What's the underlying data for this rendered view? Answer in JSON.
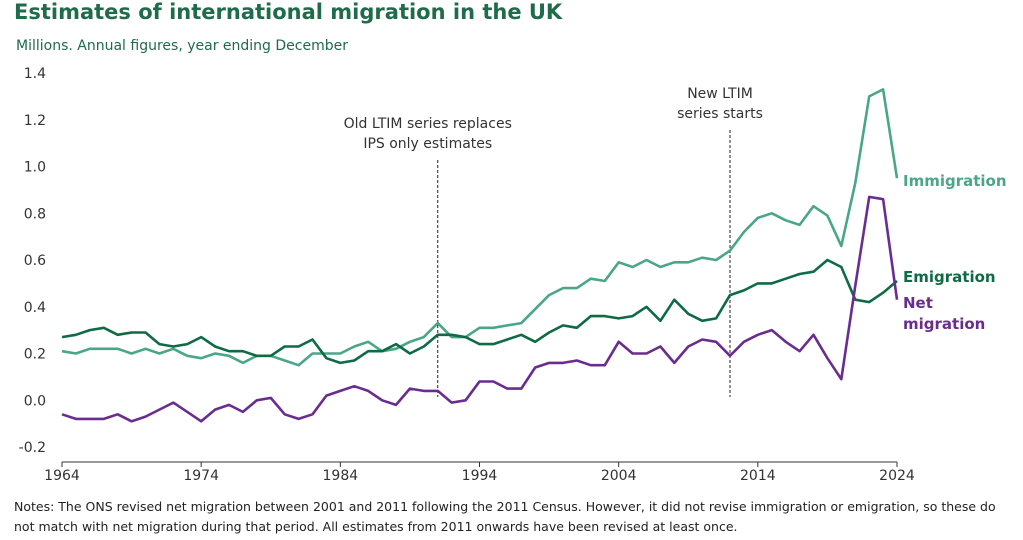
{
  "title": "Estimates of international migration in the UK",
  "subtitle": "Millions. Annual figures, year ending December",
  "notes": "Notes: The ONS revised net migration between 2001 and 2011 following the 2011 Census. However, it did not revise immigration or emigration, so these do not match with net migration during that period. All estimates from 2011 onwards have been revised at least once.",
  "chart_data": {
    "type": "line",
    "title": "Estimates of international migration in the UK",
    "subtitle": "Millions. Annual figures, year ending December",
    "xlim": [
      1964,
      2024
    ],
    "ylim": [
      -0.2,
      1.4
    ],
    "x_ticks": [
      "1964",
      "1974",
      "1984",
      "1994",
      "2004",
      "2014",
      "2024"
    ],
    "y_ticks": [
      "1.4",
      "1.2",
      "1.0",
      "0.8",
      "0.6",
      "0.4",
      "0.2",
      "0.0",
      "-0.2"
    ],
    "grid": false,
    "x": [
      1964,
      1965,
      1966,
      1967,
      1968,
      1969,
      1970,
      1971,
      1972,
      1973,
      1974,
      1975,
      1976,
      1977,
      1978,
      1979,
      1980,
      1981,
      1982,
      1983,
      1984,
      1985,
      1986,
      1987,
      1988,
      1989,
      1990,
      1991,
      1992,
      1993,
      1994,
      1995,
      1996,
      1997,
      1998,
      1999,
      2000,
      2001,
      2002,
      2003,
      2004,
      2005,
      2006,
      2007,
      2008,
      2009,
      2010,
      2011,
      2012,
      2013,
      2014,
      2015,
      2016,
      2017,
      2018,
      2019,
      2020,
      2021,
      2022,
      2023,
      2024
    ],
    "series": [
      {
        "name": "Immigration",
        "color": "#4aa688",
        "values": [
          0.21,
          0.2,
          0.22,
          0.22,
          0.22,
          0.2,
          0.22,
          0.2,
          0.22,
          0.19,
          0.18,
          0.2,
          0.19,
          0.16,
          0.19,
          0.19,
          0.17,
          0.15,
          0.2,
          0.2,
          0.2,
          0.23,
          0.25,
          0.21,
          0.22,
          0.25,
          0.27,
          0.33,
          0.27,
          0.27,
          0.31,
          0.31,
          0.32,
          0.33,
          0.39,
          0.45,
          0.48,
          0.48,
          0.52,
          0.51,
          0.59,
          0.57,
          0.6,
          0.57,
          0.59,
          0.59,
          0.61,
          0.6,
          0.64,
          0.72,
          0.78,
          0.8,
          0.77,
          0.75,
          0.83,
          0.79,
          0.66,
          0.93,
          1.3,
          1.33,
          0.95
        ]
      },
      {
        "name": "Emigration",
        "color": "#0f6b44",
        "values": [
          0.27,
          0.28,
          0.3,
          0.31,
          0.28,
          0.29,
          0.29,
          0.24,
          0.23,
          0.24,
          0.27,
          0.23,
          0.21,
          0.21,
          0.19,
          0.19,
          0.23,
          0.23,
          0.26,
          0.18,
          0.16,
          0.17,
          0.21,
          0.21,
          0.24,
          0.2,
          0.23,
          0.28,
          0.28,
          0.27,
          0.24,
          0.24,
          0.26,
          0.28,
          0.25,
          0.29,
          0.32,
          0.31,
          0.36,
          0.36,
          0.35,
          0.36,
          0.4,
          0.34,
          0.43,
          0.37,
          0.34,
          0.35,
          0.45,
          0.47,
          0.5,
          0.5,
          0.52,
          0.54,
          0.55,
          0.6,
          0.57,
          0.43,
          0.42,
          0.46,
          0.51
        ]
      },
      {
        "name": "Net migration",
        "color": "#6a2d8f",
        "values": [
          -0.06,
          -0.08,
          -0.08,
          -0.08,
          -0.06,
          -0.09,
          -0.07,
          -0.04,
          -0.01,
          -0.05,
          -0.09,
          -0.04,
          -0.02,
          -0.05,
          0.0,
          0.01,
          -0.06,
          -0.08,
          -0.06,
          0.02,
          0.04,
          0.06,
          0.04,
          0.0,
          -0.02,
          0.05,
          0.04,
          0.04,
          -0.01,
          0.0,
          0.08,
          0.08,
          0.05,
          0.05,
          0.14,
          0.16,
          0.16,
          0.17,
          0.15,
          0.15,
          0.25,
          0.2,
          0.2,
          0.23,
          0.16,
          0.23,
          0.26,
          0.25,
          0.19,
          0.25,
          0.28,
          0.3,
          0.25,
          0.21,
          0.28,
          0.18,
          0.09,
          0.49,
          0.87,
          0.86,
          0.43
        ]
      }
    ],
    "series_labels": [
      {
        "series": "Immigration",
        "lines": [
          "Immigration"
        ]
      },
      {
        "series": "Emigration",
        "lines": [
          "Emigration"
        ]
      },
      {
        "series": "Net migration",
        "lines": [
          "Net",
          "migration"
        ]
      }
    ],
    "annotations": [
      {
        "x": 1991,
        "lines": [
          "Old LTIM series replaces",
          "IPS only estimates"
        ]
      },
      {
        "x": 2012,
        "lines": [
          "New LTIM",
          "series starts"
        ]
      }
    ]
  }
}
